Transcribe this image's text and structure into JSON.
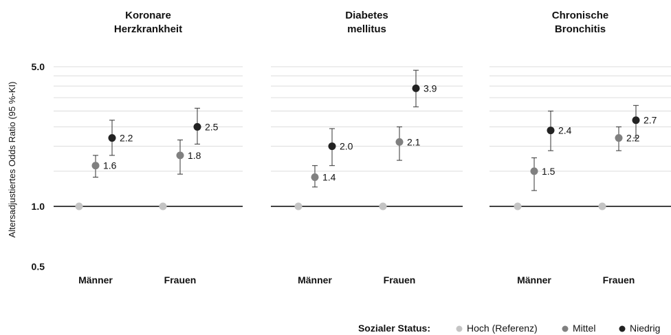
{
  "chart_data": {
    "type": "scatter",
    "ylabel": "Altersadjustiertes Odds Ratio (95 %-KI)",
    "yscale": "log",
    "ylim": [
      0.5,
      5.0
    ],
    "yticks": [
      "5.0",
      "1.0",
      "0.5"
    ],
    "reference_line": 1.0,
    "grid": true,
    "categories": [
      "Männer",
      "Frauen"
    ],
    "legend": {
      "title": "Sozialer Status:",
      "position": "bottom-right",
      "entries": [
        {
          "name": "Hoch (Referenz)",
          "color": "#c4c4c4"
        },
        {
          "name": "Mittel",
          "color": "#808080"
        },
        {
          "name": "Niedrig",
          "color": "#222222"
        }
      ]
    },
    "panels": [
      {
        "title_lines": [
          "Koronare",
          "Herzkrankheit"
        ],
        "groups": [
          {
            "category": "Männer",
            "points": [
              {
                "series": "Hoch (Referenz)",
                "value": 1.0
              },
              {
                "series": "Mittel",
                "value": 1.6,
                "label": "1.6",
                "ci": [
                  1.4,
                  1.8
                ]
              },
              {
                "series": "Niedrig",
                "value": 2.2,
                "label": "2.2",
                "ci": [
                  1.8,
                  2.7
                ]
              }
            ]
          },
          {
            "category": "Frauen",
            "points": [
              {
                "series": "Hoch (Referenz)",
                "value": 1.0
              },
              {
                "series": "Mittel",
                "value": 1.8,
                "label": "1.8",
                "ci": [
                  1.45,
                  2.15
                ]
              },
              {
                "series": "Niedrig",
                "value": 2.5,
                "label": "2.5",
                "ci": [
                  2.05,
                  3.1
                ]
              }
            ]
          }
        ]
      },
      {
        "title_lines": [
          "Diabetes",
          "mellitus"
        ],
        "groups": [
          {
            "category": "Männer",
            "points": [
              {
                "series": "Hoch (Referenz)",
                "value": 1.0
              },
              {
                "series": "Mittel",
                "value": 1.4,
                "label": "1.4",
                "ci": [
                  1.25,
                  1.6
                ]
              },
              {
                "series": "Niedrig",
                "value": 2.0,
                "label": "2.0",
                "ci": [
                  1.6,
                  2.45
                ]
              }
            ]
          },
          {
            "category": "Frauen",
            "points": [
              {
                "series": "Hoch (Referenz)",
                "value": 1.0
              },
              {
                "series": "Mittel",
                "value": 2.1,
                "label": "2.1",
                "ci": [
                  1.7,
                  2.5
                ]
              },
              {
                "series": "Niedrig",
                "value": 3.9,
                "label": "3.9",
                "ci": [
                  3.15,
                  4.8
                ]
              }
            ]
          }
        ]
      },
      {
        "title_lines": [
          "Chronische",
          "Bronchitis"
        ],
        "groups": [
          {
            "category": "Männer",
            "points": [
              {
                "series": "Hoch (Referenz)",
                "value": 1.0
              },
              {
                "series": "Mittel",
                "value": 1.5,
                "label": "1.5",
                "ci": [
                  1.2,
                  1.75
                ]
              },
              {
                "series": "Niedrig",
                "value": 2.4,
                "label": "2.4",
                "ci": [
                  1.9,
                  3.0
                ]
              }
            ]
          },
          {
            "category": "Frauen",
            "points": [
              {
                "series": "Hoch (Referenz)",
                "value": 1.0
              },
              {
                "series": "Mittel",
                "value": 2.2,
                "label": "2.2",
                "ci": [
                  1.9,
                  2.5
                ]
              },
              {
                "series": "Niedrig",
                "value": 2.7,
                "label": "2.7",
                "ci": [
                  2.2,
                  3.2
                ]
              }
            ]
          }
        ]
      }
    ]
  }
}
